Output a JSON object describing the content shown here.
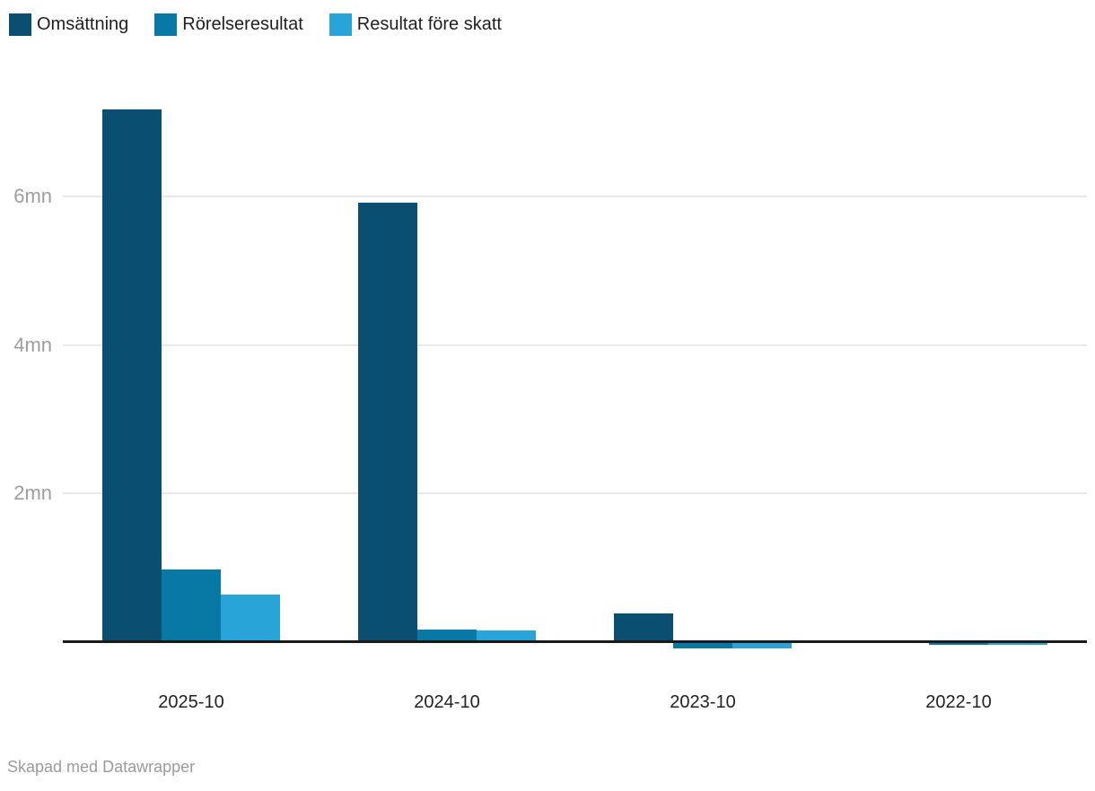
{
  "legend": {
    "items": [
      {
        "label": "Omsättning",
        "color": "#0A4E72"
      },
      {
        "label": "Rörelseresultat",
        "color": "#0779A4"
      },
      {
        "label": "Resultat före skatt",
        "color": "#28A4D9"
      }
    ]
  },
  "chart_data": {
    "type": "bar",
    "title": "",
    "xlabel": "",
    "ylabel": "",
    "unit": "mn",
    "categories": [
      "2025-10",
      "2024-10",
      "2023-10",
      "2022-10"
    ],
    "series": [
      {
        "name": "Omsättning",
        "color": "#0A4E72",
        "values": [
          7.17,
          5.91,
          0.38,
          0
        ]
      },
      {
        "name": "Rörelseresultat",
        "color": "#0779A4",
        "values": [
          0.97,
          0.16,
          -0.07,
          -0.03
        ]
      },
      {
        "name": "Resultat före skatt",
        "color": "#28A4D9",
        "values": [
          0.63,
          0.14,
          -0.07,
          -0.03
        ]
      }
    ],
    "y_ticks": [
      {
        "value": 6,
        "label": "6mn"
      },
      {
        "value": 4,
        "label": "4mn"
      },
      {
        "value": 2,
        "label": "2mn"
      }
    ],
    "ylim": [
      -0.1,
      7.5
    ],
    "grid": true,
    "legend_position": "top-left",
    "colors": {
      "grid": "#E8E8E8",
      "axis": "#1A1A1A",
      "y_tick_text": "#9D9D9D",
      "x_tick_text": "#222222"
    }
  },
  "footer": {
    "credit": "Skapad med Datawrapper"
  }
}
